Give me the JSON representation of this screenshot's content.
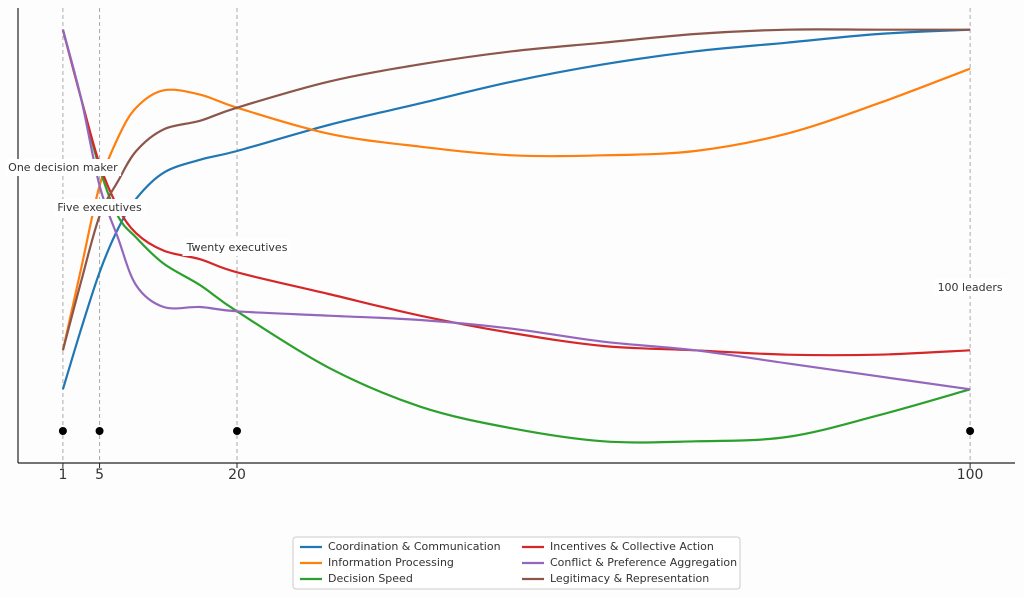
{
  "chart_data": {
    "type": "line",
    "x": [
      1,
      3,
      5,
      7,
      9,
      12,
      16,
      20,
      30,
      40,
      50,
      60,
      70,
      80,
      90,
      100
    ],
    "series": [
      {
        "name": "Coordination & Communication",
        "color": "#1f77b4",
        "values": [
          0.17,
          0.31,
          0.44,
          0.54,
          0.61,
          0.67,
          0.7,
          0.72,
          0.78,
          0.83,
          0.88,
          0.92,
          0.95,
          0.97,
          0.99,
          1.0
        ]
      },
      {
        "name": "Information Processing",
        "color": "#ff7f0e",
        "values": [
          0.26,
          0.45,
          0.64,
          0.75,
          0.82,
          0.86,
          0.85,
          0.82,
          0.76,
          0.73,
          0.71,
          0.71,
          0.72,
          0.76,
          0.83,
          0.91
        ]
      },
      {
        "name": "Decision Speed",
        "color": "#2ca02c",
        "values": [
          1.0,
          0.84,
          0.68,
          0.57,
          0.52,
          0.46,
          0.41,
          0.35,
          0.22,
          0.13,
          0.08,
          0.05,
          0.05,
          0.06,
          0.11,
          0.17
        ]
      },
      {
        "name": "Incentives & Collective Action",
        "color": "#d62728",
        "values": [
          1.0,
          0.84,
          0.69,
          0.59,
          0.53,
          0.49,
          0.47,
          0.44,
          0.39,
          0.34,
          0.3,
          0.27,
          0.26,
          0.25,
          0.25,
          0.26
        ]
      },
      {
        "name": "Conflict & Preference Aggregation",
        "color": "#9467bd",
        "values": [
          1.0,
          0.84,
          0.64,
          0.52,
          0.41,
          0.36,
          0.36,
          0.35,
          0.34,
          0.33,
          0.31,
          0.28,
          0.26,
          0.23,
          0.2,
          0.17
        ]
      },
      {
        "name": "Legitimacy & Representation",
        "color": "#8c564b",
        "values": [
          0.26,
          0.42,
          0.57,
          0.65,
          0.72,
          0.77,
          0.79,
          0.82,
          0.88,
          0.92,
          0.95,
          0.97,
          0.99,
          1.0,
          1.0,
          1.0
        ]
      }
    ],
    "xlim": [
      -3.9,
      104.9
    ],
    "xticks": [
      1,
      5,
      20,
      100
    ],
    "ylim": [
      0,
      1.05
    ],
    "annotations": [
      {
        "x": 1,
        "label": "One decision maker"
      },
      {
        "x": 5,
        "label": "Five executives"
      },
      {
        "x": 20,
        "label": "Twenty executives"
      },
      {
        "x": 100,
        "label": "100 leaders"
      }
    ],
    "legend": "lower center"
  }
}
